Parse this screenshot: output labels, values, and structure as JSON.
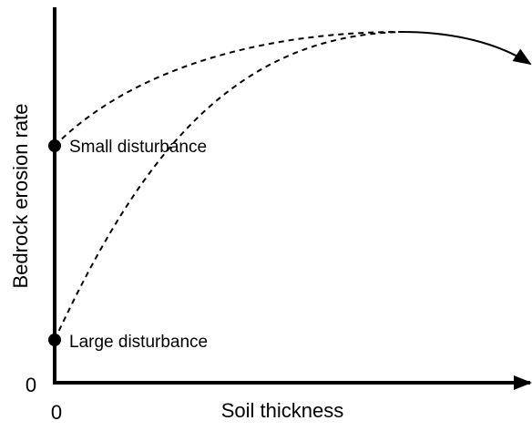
{
  "axes": {
    "y_label": "Bedrock erosion rate",
    "x_label": "Soil thickness",
    "x_origin": "0",
    "y_origin": "0"
  },
  "points": [
    {
      "label": "Small disturbance"
    },
    {
      "label": "Large disturbance"
    }
  ]
}
